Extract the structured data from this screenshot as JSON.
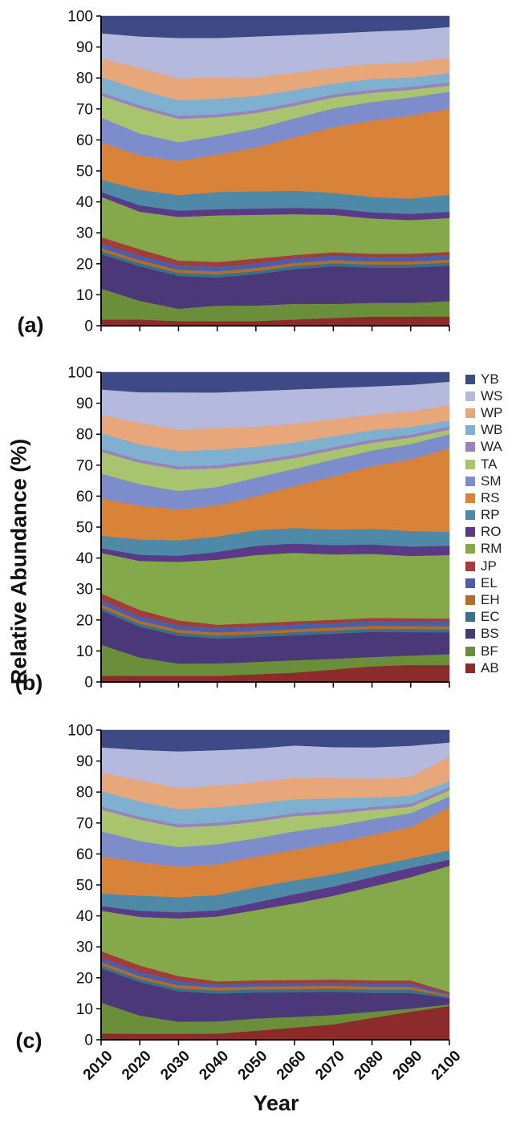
{
  "y_axis_label": "Relative Abundance (%)",
  "x_axis_label": "Year",
  "legend_order": [
    "YB",
    "WS",
    "WP",
    "WB",
    "WA",
    "TA",
    "SM",
    "RS",
    "RP",
    "RO",
    "RM",
    "JP",
    "EL",
    "EH",
    "EC",
    "BS",
    "BF",
    "AB"
  ],
  "colors": {
    "AB": "#8b2b2b",
    "BF": "#6b8e3a",
    "BS": "#4a3878",
    "EC": "#3b6f8a",
    "EH": "#b16d2a",
    "EL": "#4b5fa8",
    "JP": "#a63b3b",
    "RM": "#84a84a",
    "RO": "#5a3a86",
    "RP": "#4e8aa8",
    "RS": "#d9823a",
    "SM": "#7d8dcc",
    "TA": "#a8c46f",
    "WA": "#9a83bd",
    "WB": "#7fb0cf",
    "WP": "#e8a77a",
    "WS": "#b4b9dd",
    "YB": "#3e4a85"
  },
  "chart_data": [
    {
      "type": "area",
      "panel_label": "(a)",
      "stacked": true,
      "x": [
        2010,
        2020,
        2030,
        2040,
        2050,
        2060,
        2070,
        2080,
        2090,
        2100
      ],
      "ylim": [
        0,
        100
      ],
      "x_ticks": [
        2010,
        2020,
        2030,
        2040,
        2050,
        2060,
        2070,
        2080,
        2090,
        2100
      ],
      "y_ticks": [
        0,
        10,
        20,
        30,
        40,
        50,
        60,
        70,
        80,
        90,
        100
      ],
      "series": [
        {
          "name": "AB",
          "values": [
            2,
            2,
            1.5,
            1.5,
            1.5,
            2,
            2.5,
            3,
            3,
            3
          ]
        },
        {
          "name": "BF",
          "values": [
            10,
            6,
            4,
            5,
            5,
            5,
            4.5,
            4.5,
            4.5,
            5
          ]
        },
        {
          "name": "BS",
          "values": [
            11,
            11,
            10.5,
            9,
            10,
            11,
            12,
            11.5,
            11.5,
            11.5
          ]
        },
        {
          "name": "EC",
          "values": [
            1,
            1,
            1,
            1,
            1,
            1,
            1,
            1,
            1,
            1
          ]
        },
        {
          "name": "EH",
          "values": [
            1,
            1,
            1,
            1,
            1,
            1,
            1,
            1,
            1,
            1
          ]
        },
        {
          "name": "EL",
          "values": [
            1.5,
            1.5,
            1.5,
            1.5,
            1.5,
            1.5,
            1.5,
            1.5,
            1.5,
            1.5
          ]
        },
        {
          "name": "JP",
          "values": [
            2,
            2,
            1.5,
            1.5,
            1.5,
            1,
            1,
            1,
            1,
            1
          ]
        },
        {
          "name": "RM",
          "values": [
            13,
            12,
            14,
            15,
            14,
            13,
            12,
            11.5,
            11,
            11
          ]
        },
        {
          "name": "RO",
          "values": [
            1.5,
            2,
            2,
            2,
            2,
            2,
            2,
            2,
            2,
            2
          ]
        },
        {
          "name": "RP",
          "values": [
            4,
            5,
            5,
            5.5,
            5.5,
            5.5,
            5,
            5,
            5,
            5.5
          ]
        },
        {
          "name": "RS",
          "values": [
            12,
            11,
            11,
            12,
            14,
            17,
            21,
            25,
            27,
            28
          ]
        },
        {
          "name": "SM",
          "values": [
            8,
            7,
            6,
            6,
            6,
            6,
            6,
            6,
            6,
            5.5
          ]
        },
        {
          "name": "TA",
          "values": [
            7,
            8,
            7.5,
            6,
            5,
            4,
            3.5,
            3,
            2.5,
            2
          ]
        },
        {
          "name": "WA",
          "values": [
            1,
            1,
            1,
            1,
            1,
            1,
            1,
            1,
            1,
            1
          ]
        },
        {
          "name": "WB",
          "values": [
            5,
            5,
            5,
            5,
            4.5,
            4,
            3.5,
            3.5,
            3,
            3
          ]
        },
        {
          "name": "WP",
          "values": [
            6,
            7,
            7,
            7,
            6,
            5.5,
            5,
            5,
            5,
            5
          ]
        },
        {
          "name": "WS",
          "values": [
            8,
            10,
            13,
            12.5,
            13,
            12,
            11,
            10.5,
            10.5,
            10
          ]
        },
        {
          "name": "YB",
          "values": [
            5.5,
            6.5,
            7,
            7,
            6.5,
            6,
            5.5,
            5,
            4.5,
            3.5
          ]
        }
      ]
    },
    {
      "type": "area",
      "panel_label": "(b)",
      "stacked": true,
      "x": [
        2010,
        2020,
        2030,
        2040,
        2050,
        2060,
        2070,
        2080,
        2090,
        2100
      ],
      "ylim": [
        0,
        100
      ],
      "x_ticks": [
        2010,
        2020,
        2030,
        2040,
        2050,
        2060,
        2070,
        2080,
        2090,
        2100
      ],
      "y_ticks": [
        0,
        10,
        20,
        30,
        40,
        50,
        60,
        70,
        80,
        90,
        100
      ],
      "series": [
        {
          "name": "AB",
          "values": [
            2,
            2,
            2,
            2,
            2.5,
            3,
            4,
            5,
            5.5,
            5.5
          ]
        },
        {
          "name": "BF",
          "values": [
            10,
            6,
            4,
            4,
            4,
            4,
            3.5,
            3,
            3,
            3.5
          ]
        },
        {
          "name": "BS",
          "values": [
            11,
            10,
            9,
            8,
            8,
            8,
            8,
            8,
            7.5,
            7
          ]
        },
        {
          "name": "EC",
          "values": [
            1,
            1,
            1,
            1,
            1,
            1,
            1,
            1,
            1,
            1
          ]
        },
        {
          "name": "EH",
          "values": [
            1,
            1,
            1,
            1,
            1,
            1,
            1,
            1,
            1,
            1
          ]
        },
        {
          "name": "EL",
          "values": [
            1.5,
            1.5,
            1.5,
            1.5,
            1.5,
            1.5,
            1.5,
            1.5,
            1.5,
            1.5
          ]
        },
        {
          "name": "JP",
          "values": [
            2,
            2,
            1.5,
            1,
            1,
            1,
            1,
            1,
            1,
            1
          ]
        },
        {
          "name": "RM",
          "values": [
            13,
            16,
            19,
            21,
            22,
            22,
            21,
            20.5,
            20,
            20.5
          ]
        },
        {
          "name": "RO",
          "values": [
            1.5,
            2,
            2,
            2.5,
            3,
            3,
            3,
            3,
            3,
            3
          ]
        },
        {
          "name": "RP",
          "values": [
            4,
            5,
            5,
            5,
            5,
            5,
            5,
            5,
            5,
            4.5
          ]
        },
        {
          "name": "RS",
          "values": [
            12,
            11,
            10,
            10,
            11,
            13.5,
            17,
            20,
            23,
            27
          ]
        },
        {
          "name": "SM",
          "values": [
            8,
            7,
            6,
            6,
            6,
            5.5,
            5.5,
            5,
            5,
            4.5
          ]
        },
        {
          "name": "TA",
          "values": [
            7,
            7,
            7,
            6,
            4.5,
            3.5,
            3,
            2.5,
            2,
            1.5
          ]
        },
        {
          "name": "WA",
          "values": [
            1,
            1,
            1,
            1,
            1,
            1,
            1,
            1,
            1,
            1
          ]
        },
        {
          "name": "WB",
          "values": [
            5,
            5,
            5,
            5,
            4.5,
            4,
            3.5,
            3,
            2.5,
            2
          ]
        },
        {
          "name": "WP",
          "values": [
            6,
            7,
            7,
            7,
            6.5,
            6,
            5.5,
            5,
            5,
            5
          ]
        },
        {
          "name": "WS",
          "values": [
            8,
            10,
            12,
            11.5,
            11.5,
            11,
            10,
            9,
            8.5,
            7.5
          ]
        },
        {
          "name": "YB",
          "values": [
            5.5,
            6.5,
            6.5,
            6.5,
            6,
            5.5,
            5,
            4.5,
            4,
            3
          ]
        }
      ]
    },
    {
      "type": "area",
      "panel_label": "(c)",
      "stacked": true,
      "x": [
        2010,
        2020,
        2030,
        2040,
        2050,
        2060,
        2070,
        2080,
        2090,
        2100
      ],
      "ylim": [
        0,
        100
      ],
      "x_ticks": [
        2010,
        2020,
        2030,
        2040,
        2050,
        2060,
        2070,
        2080,
        2090,
        2100
      ],
      "y_ticks": [
        0,
        10,
        20,
        30,
        40,
        50,
        60,
        70,
        80,
        90,
        100
      ],
      "series": [
        {
          "name": "AB",
          "values": [
            2,
            2,
            2,
            2,
            3,
            4,
            5,
            7,
            9,
            11
          ]
        },
        {
          "name": "BF",
          "values": [
            10,
            6,
            4,
            4,
            4,
            3.5,
            3,
            2,
            1,
            0.5
          ]
        },
        {
          "name": "BS",
          "values": [
            11,
            11,
            10,
            9,
            8.5,
            8,
            7.5,
            6,
            5,
            2
          ]
        },
        {
          "name": "EC",
          "values": [
            1,
            1,
            1,
            1,
            1,
            1,
            1,
            1,
            1,
            0.5
          ]
        },
        {
          "name": "EH",
          "values": [
            1,
            1,
            1,
            1,
            1,
            1,
            1,
            1,
            1,
            0.5
          ]
        },
        {
          "name": "EL",
          "values": [
            1.5,
            1.5,
            1.5,
            1,
            1,
            1,
            1,
            1,
            1,
            0.5
          ]
        },
        {
          "name": "JP",
          "values": [
            2,
            2,
            1.5,
            1,
            1,
            1,
            1,
            1,
            1,
            0.5
          ]
        },
        {
          "name": "RM",
          "values": [
            13,
            16,
            19,
            21,
            23,
            25,
            27,
            30,
            33,
            41
          ]
        },
        {
          "name": "RO",
          "values": [
            1.5,
            2,
            2,
            2,
            2.5,
            3,
            3,
            3,
            3,
            2
          ]
        },
        {
          "name": "RP",
          "values": [
            4,
            5,
            5,
            5,
            5,
            4.5,
            4,
            3.5,
            3,
            3
          ]
        },
        {
          "name": "RS",
          "values": [
            12,
            11,
            10,
            10,
            10,
            10,
            10,
            10,
            10,
            14
          ]
        },
        {
          "name": "SM",
          "values": [
            8,
            7,
            6.5,
            6.5,
            6,
            6,
            5.5,
            5,
            4.5,
            3.5
          ]
        },
        {
          "name": "TA",
          "values": [
            7,
            7,
            6.5,
            6,
            5.5,
            5,
            4,
            3,
            2,
            2
          ]
        },
        {
          "name": "WA",
          "values": [
            1,
            1,
            1,
            1,
            1,
            1,
            1,
            1,
            1,
            1
          ]
        },
        {
          "name": "WB",
          "values": [
            5,
            5,
            5,
            5,
            5,
            4.5,
            4,
            3,
            2.5,
            2
          ]
        },
        {
          "name": "WP",
          "values": [
            6,
            7,
            7,
            7,
            7,
            7,
            6.5,
            6,
            6,
            8
          ]
        },
        {
          "name": "WS",
          "values": [
            8,
            10,
            12,
            11.5,
            11,
            10.5,
            10,
            10,
            10,
            4.5
          ]
        },
        {
          "name": "YB",
          "values": [
            5.5,
            6.5,
            7,
            6.5,
            6,
            5,
            5.5,
            5.5,
            5,
            4
          ]
        }
      ]
    }
  ]
}
